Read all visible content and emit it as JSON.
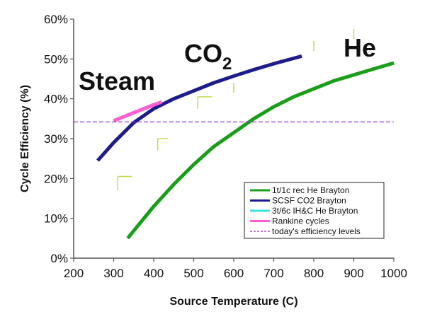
{
  "chart_data": {
    "type": "line",
    "xlabel": "Source Temperature (C)",
    "ylabel": "Cycle Efficiency (%)",
    "xlim": [
      200,
      1000
    ],
    "ylim": [
      0,
      60
    ],
    "x_ticks": [
      "200",
      "300",
      "400",
      "500",
      "600",
      "700",
      "800",
      "900",
      "1000"
    ],
    "y_ticks": [
      "0%",
      "10%",
      "20%",
      "30%",
      "40%",
      "50%",
      "60%"
    ],
    "grid": false,
    "legend_position": "bottom-right",
    "annotations": {
      "steam": "Steam",
      "co2_main": "CO",
      "co2_sub": "2",
      "he": "He"
    },
    "series": [
      {
        "name": "1t/1c rec He Brayton",
        "color": "#1a9e1a",
        "style": "solid",
        "points": [
          [
            335,
            5
          ],
          [
            400,
            13
          ],
          [
            450,
            18.5
          ],
          [
            500,
            23.5
          ],
          [
            550,
            28
          ],
          [
            600,
            31.5
          ],
          [
            650,
            35
          ],
          [
            700,
            38
          ],
          [
            750,
            40.5
          ],
          [
            800,
            42.5
          ],
          [
            850,
            44.5
          ],
          [
            900,
            46
          ],
          [
            950,
            47.5
          ],
          [
            1000,
            49
          ]
        ]
      },
      {
        "name": "SCSF CO2 Brayton",
        "color": "#1c1c8c",
        "style": "solid",
        "points": [
          [
            260,
            24.5
          ],
          [
            300,
            29
          ],
          [
            350,
            34
          ],
          [
            400,
            37.5
          ],
          [
            450,
            40
          ],
          [
            500,
            42
          ],
          [
            550,
            44
          ],
          [
            600,
            45.7
          ],
          [
            650,
            47.3
          ],
          [
            700,
            48.8
          ],
          [
            770,
            50.7
          ]
        ]
      },
      {
        "name": "3t/6c IH&C He Brayton",
        "color": "#3ee0e0",
        "style": "solid",
        "points": []
      },
      {
        "name": "Rankine cycles",
        "color": "#ff5fd0",
        "style": "solid",
        "points": [
          [
            300,
            34.5
          ],
          [
            350,
            36.5
          ],
          [
            400,
            38.5
          ],
          [
            420,
            39.2
          ]
        ]
      },
      {
        "name": "today's efficiency levels",
        "color": "#9933cc",
        "style": "dashed",
        "points": [
          [
            200,
            34.2
          ],
          [
            1000,
            34.2
          ]
        ]
      }
    ],
    "stray_marks": [
      {
        "color": "#c8d850",
        "points": [
          [
            310,
            20.5
          ],
          [
            345,
            20.5
          ]
        ]
      },
      {
        "color": "#c8d850",
        "points": [
          [
            310,
            20.5
          ],
          [
            310,
            17
          ]
        ]
      },
      {
        "color": "#c8d850",
        "points": [
          [
            410,
            30
          ],
          [
            435,
            30
          ]
        ]
      },
      {
        "color": "#c8d850",
        "points": [
          [
            410,
            30
          ],
          [
            410,
            27
          ]
        ]
      },
      {
        "color": "#c8d850",
        "points": [
          [
            510,
            40.5
          ],
          [
            545,
            40.5
          ]
        ]
      },
      {
        "color": "#c8d850",
        "points": [
          [
            510,
            40.5
          ],
          [
            510,
            37.5
          ]
        ]
      },
      {
        "color": "#c8d850",
        "points": [
          [
            600,
            44
          ],
          [
            600,
            41.5
          ]
        ]
      },
      {
        "color": "#c8d850",
        "points": [
          [
            800,
            54.5
          ],
          [
            800,
            52
          ]
        ]
      },
      {
        "color": "#c8d850",
        "points": [
          [
            900,
            57.5
          ],
          [
            900,
            55
          ]
        ]
      }
    ]
  }
}
